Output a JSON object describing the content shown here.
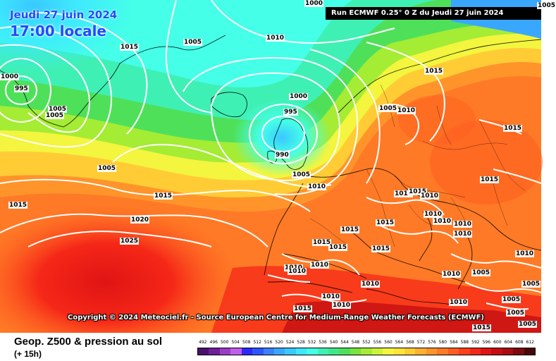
{
  "header": {
    "date": "Jeudi 27 juin 2024",
    "time": "17:00 locale",
    "run": "Run ECMWF 0.25° 0 Z du Jeudi 27 juin 2024"
  },
  "copyright": "Copyright © 2024 Meteociel.fr - Source European Centre for Medium-Range Weather Forecasts (ECMWF)",
  "footer": {
    "title": "Geop. Z500 & pression au sol",
    "subtitle": "(+ 15h)"
  },
  "color_scale": {
    "labels": [
      "492",
      "496",
      "500",
      "504",
      "508",
      "512",
      "516",
      "520",
      "524",
      "528",
      "532",
      "536",
      "540",
      "544",
      "548",
      "552",
      "556",
      "560",
      "564",
      "568",
      "572",
      "576",
      "580",
      "584",
      "588",
      "592",
      "596",
      "600",
      "604",
      "608",
      "612"
    ],
    "colors": [
      "#4b0f6e",
      "#6d1f99",
      "#9a3cc8",
      "#c25ee8",
      "#2a2aff",
      "#2d55ff",
      "#3a80ff",
      "#3aa7ff",
      "#39c8ff",
      "#3ee8ff",
      "#45ffe8",
      "#3ff0b4",
      "#3ee88a",
      "#4fe05a",
      "#79e33d",
      "#a5ec35",
      "#cdf23a",
      "#f3f53e",
      "#ffe53a",
      "#ffcc36",
      "#ffb030",
      "#ff942b",
      "#ff7a26",
      "#ff5d21",
      "#ff401c",
      "#f52718",
      "#e01414",
      "#c40f12",
      "#a80c12",
      "#7c0a0e",
      "#4a0608"
    ]
  },
  "isobar_labels": [
    "1000",
    "1005",
    "1015",
    "1005",
    "1010",
    "1000",
    "995",
    "1005",
    "1015",
    "1005",
    "1005",
    "1015",
    "1020",
    "1025",
    "1000",
    "995",
    "990",
    "1005",
    "1010",
    "1015",
    "1005",
    "1010",
    "1015",
    "1010",
    "1015",
    "1010",
    "1010",
    "1010",
    "1010",
    "1015",
    "1015",
    "1015",
    "1015",
    "1010",
    "1010",
    "1015",
    "1010",
    "1010",
    "1010",
    "1005",
    "1010",
    "1010",
    "1005",
    "1005",
    "1005",
    "1010",
    "1010",
    "1015",
    "1010",
    "1015",
    "1015",
    "1005"
  ]
}
